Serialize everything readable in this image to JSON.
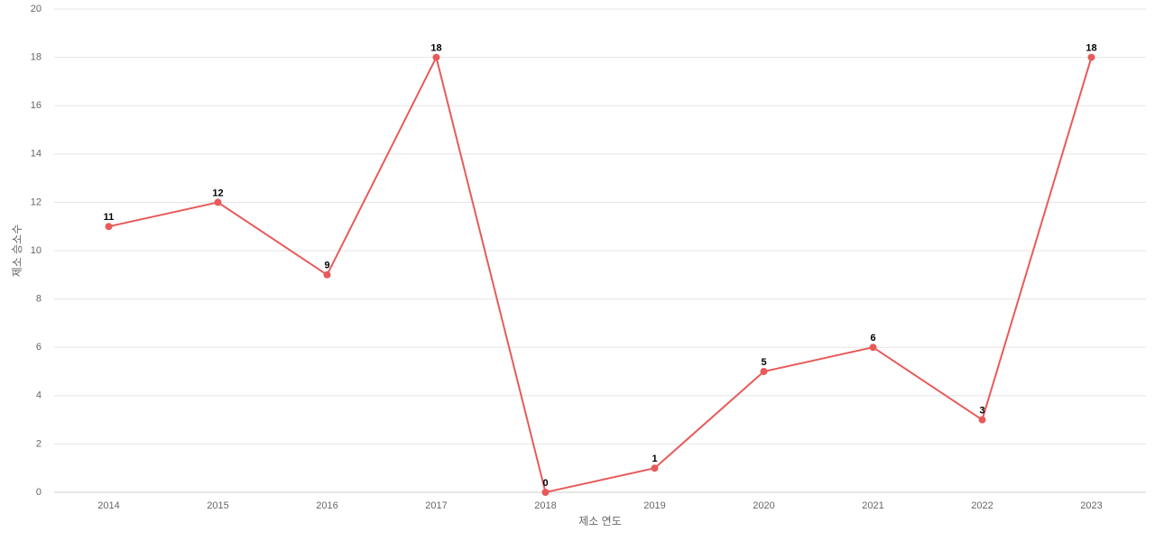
{
  "chart_data": {
    "type": "line",
    "x_label": "제소 연도",
    "y_label": "제소 승소수",
    "categories": [
      "2014",
      "2015",
      "2016",
      "2017",
      "2018",
      "2019",
      "2020",
      "2021",
      "2022",
      "2023"
    ],
    "values": [
      11,
      12,
      9,
      18,
      0,
      1,
      5,
      6,
      3,
      18
    ],
    "color": "#e85a5a",
    "ylim": [
      0,
      20
    ],
    "yticks": [
      0,
      2,
      4,
      6,
      8,
      10,
      12,
      14,
      16,
      18,
      20
    ],
    "grid": true
  }
}
